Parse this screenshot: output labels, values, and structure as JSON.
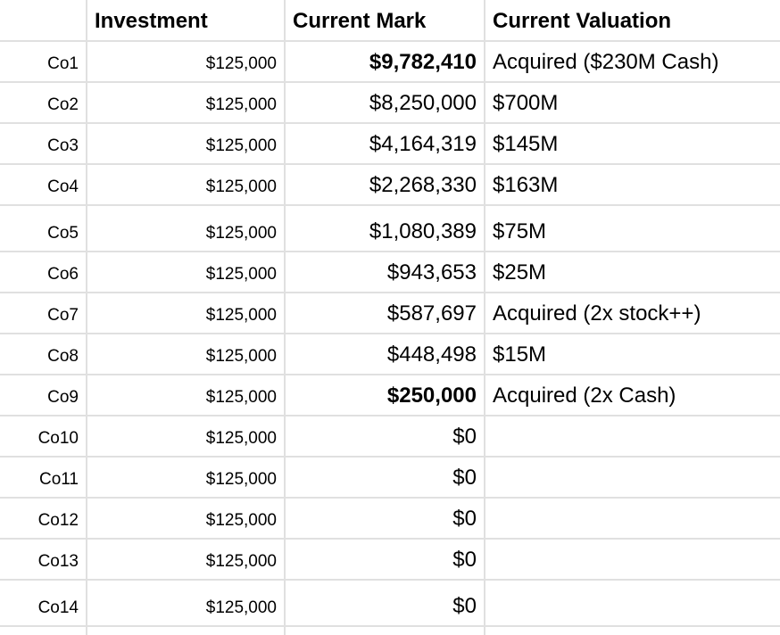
{
  "colors": {
    "background": "#ffffff",
    "grid_line": "#e0e0e0",
    "text": "#000000"
  },
  "header": {
    "row_label": "",
    "investment": "Investment",
    "current_mark": "Current Mark",
    "current_valuation": "Current Valuation"
  },
  "rows": [
    {
      "label": "Co1",
      "investment": "$125,000",
      "current_mark": "$9,782,410",
      "mark_bold": true,
      "current_valuation": "Acquired ($230M Cash)"
    },
    {
      "label": "Co2",
      "investment": "$125,000",
      "current_mark": "$8,250,000",
      "mark_bold": false,
      "current_valuation": "$700M"
    },
    {
      "label": "Co3",
      "investment": "$125,000",
      "current_mark": "$4,164,319",
      "mark_bold": false,
      "current_valuation": "$145M"
    },
    {
      "label": "Co4",
      "investment": "$125,000",
      "current_mark": "$2,268,330",
      "mark_bold": false,
      "current_valuation": "$163M"
    },
    {
      "label": "Co5",
      "investment": "$125,000",
      "current_mark": "$1,080,389",
      "mark_bold": false,
      "current_valuation": "$75M"
    },
    {
      "label": "Co6",
      "investment": "$125,000",
      "current_mark": "$943,653",
      "mark_bold": false,
      "current_valuation": "$25M"
    },
    {
      "label": "Co7",
      "investment": "$125,000",
      "current_mark": "$587,697",
      "mark_bold": false,
      "current_valuation": "Acquired (2x stock++)"
    },
    {
      "label": "Co8",
      "investment": "$125,000",
      "current_mark": "$448,498",
      "mark_bold": false,
      "current_valuation": "$15M"
    },
    {
      "label": "Co9",
      "investment": "$125,000",
      "current_mark": "$250,000",
      "mark_bold": true,
      "current_valuation": "Acquired (2x Cash)"
    },
    {
      "label": "Co10",
      "investment": "$125,000",
      "current_mark": "$0",
      "mark_bold": false,
      "current_valuation": ""
    },
    {
      "label": "Co11",
      "investment": "$125,000",
      "current_mark": "$0",
      "mark_bold": false,
      "current_valuation": ""
    },
    {
      "label": "Co12",
      "investment": "$125,000",
      "current_mark": "$0",
      "mark_bold": false,
      "current_valuation": ""
    },
    {
      "label": "Co13",
      "investment": "$125,000",
      "current_mark": "$0",
      "mark_bold": false,
      "current_valuation": ""
    },
    {
      "label": "Co14",
      "investment": "$125,000",
      "current_mark": "$0",
      "mark_bold": false,
      "current_valuation": ""
    }
  ]
}
